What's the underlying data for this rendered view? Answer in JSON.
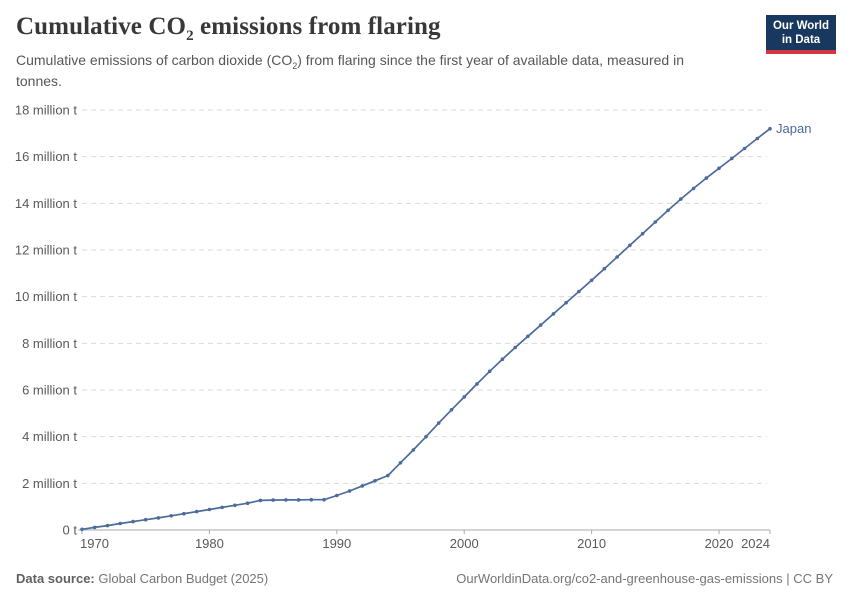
{
  "header": {
    "title": {
      "part1": "Cumulative CO",
      "sub": "2",
      "part2": " emissions from flaring"
    },
    "subtitle": {
      "part1": "Cumulative emissions of carbon dioxide (CO",
      "sub": "2",
      "part2": ") from flaring since the first year of available data, measured in",
      "part3": "tonnes."
    },
    "logo": {
      "line1": "Our World",
      "line2": "in Data",
      "bg_color": "#193860",
      "accent_color": "#cf3742"
    }
  },
  "chart_data": {
    "type": "line",
    "title": "Cumulative CO2 emissions from flaring",
    "xlabel": "",
    "ylabel": "",
    "unit": "million tonnes",
    "grid": "horizontal dashed",
    "legend_position": "end-of-line label",
    "xlim": [
      1970,
      2024
    ],
    "ylim": [
      0,
      18
    ],
    "x_ticks": [
      1970,
      1980,
      1990,
      2000,
      2010,
      2020,
      2024
    ],
    "y_ticks": [
      {
        "v": 0,
        "label": "0 t"
      },
      {
        "v": 2,
        "label": "2 million t"
      },
      {
        "v": 4,
        "label": "4 million t"
      },
      {
        "v": 6,
        "label": "6 million t"
      },
      {
        "v": 8,
        "label": "8 million t"
      },
      {
        "v": 10,
        "label": "10 million t"
      },
      {
        "v": 12,
        "label": "12 million t"
      },
      {
        "v": 14,
        "label": "14 million t"
      },
      {
        "v": 16,
        "label": "16 million t"
      },
      {
        "v": 18,
        "label": "18 million t"
      }
    ],
    "colors": {
      "grid": "#dadada",
      "axis": "#a8a8a8"
    },
    "series": [
      {
        "name": "Japan",
        "color": "#4c6a9c",
        "x": [
          1970,
          1971,
          1972,
          1973,
          1974,
          1975,
          1976,
          1977,
          1978,
          1979,
          1980,
          1981,
          1982,
          1983,
          1984,
          1985,
          1986,
          1987,
          1988,
          1989,
          1990,
          1991,
          1992,
          1993,
          1994,
          1995,
          1996,
          1997,
          1998,
          1999,
          2000,
          2001,
          2002,
          2003,
          2004,
          2005,
          2006,
          2007,
          2008,
          2009,
          2010,
          2011,
          2012,
          2013,
          2014,
          2015,
          2016,
          2017,
          2018,
          2019,
          2020,
          2021,
          2022,
          2023,
          2024
        ],
        "values": [
          0.03,
          0.11,
          0.19,
          0.28,
          0.36,
          0.44,
          0.52,
          0.61,
          0.7,
          0.79,
          0.88,
          0.97,
          1.06,
          1.15,
          1.27,
          1.28,
          1.29,
          1.29,
          1.3,
          1.3,
          1.48,
          1.67,
          1.89,
          2.11,
          2.33,
          2.88,
          3.43,
          4.0,
          4.58,
          5.15,
          5.7,
          6.26,
          6.8,
          7.32,
          7.82,
          8.3,
          8.78,
          9.26,
          9.74,
          10.22,
          10.7,
          11.2,
          11.7,
          12.2,
          12.7,
          13.2,
          13.7,
          14.18,
          14.64,
          15.08,
          15.5,
          15.92,
          16.35,
          16.78,
          17.2
        ]
      }
    ]
  },
  "footer": {
    "source_label": "Data source:",
    "source_value": "Global Carbon Budget (2025)",
    "link": "OurWorldinData.org/co2-and-greenhouse-gas-emissions",
    "separator": "|",
    "license": "CC BY"
  }
}
